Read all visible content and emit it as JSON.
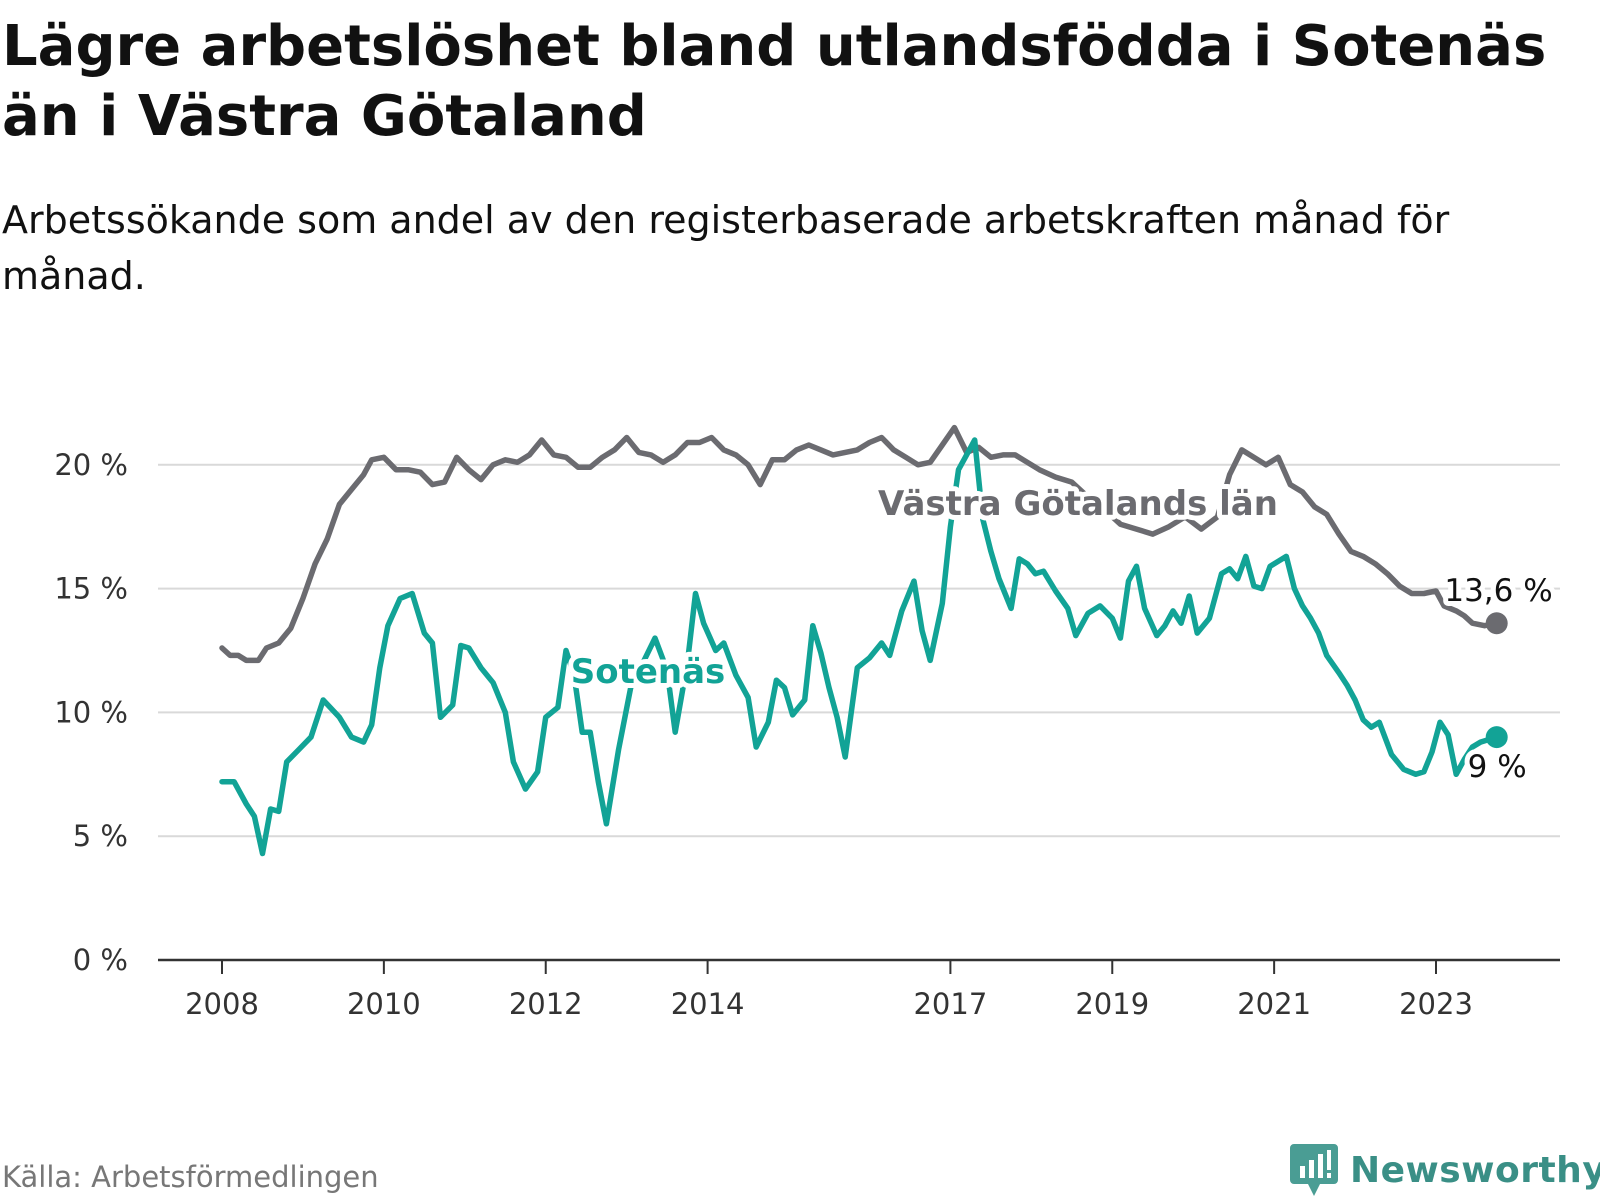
{
  "title": "Lägre arbetslöshet bland utlandsfödda i Sotenäs än i Västra Götaland",
  "subtitle": "Arbetssökande som andel av den registerbaserade arbetskraften månad för månad.",
  "source": "Källa: Arbetsförmedlingen",
  "brand": "Newsworthy",
  "icons": {
    "brand": "newsworthy-logo-icon"
  },
  "chart_data": {
    "type": "line",
    "title": "Lägre arbetslöshet bland utlandsfödda i Sotenäs än i Västra Götaland",
    "xlabel": "",
    "ylabel": "",
    "ylim": [
      0,
      21
    ],
    "xlim": [
      2007.5,
      2024.8
    ],
    "grid": true,
    "y_ticks": [
      {
        "value": 0,
        "label": "0 %"
      },
      {
        "value": 5,
        "label": "5 %"
      },
      {
        "value": 10,
        "label": "10 %"
      },
      {
        "value": 15,
        "label": "15 %"
      },
      {
        "value": 20,
        "label": "20 %"
      }
    ],
    "x_ticks": [
      {
        "value": 2008,
        "label": "2008"
      },
      {
        "value": 2010,
        "label": "2010"
      },
      {
        "value": 2012,
        "label": "2012"
      },
      {
        "value": 2014,
        "label": "2014"
      },
      {
        "value": 2017,
        "label": "2017"
      },
      {
        "value": 2019,
        "label": "2019"
      },
      {
        "value": 2021,
        "label": "2021"
      },
      {
        "value": 2023,
        "label": "2023"
      }
    ],
    "series": [
      {
        "name": "Västra Götalands län",
        "color": "#6b6b70",
        "end_label": "13,6 %",
        "points": [
          [
            2008.0,
            12.6
          ],
          [
            2008.1,
            12.3
          ],
          [
            2008.2,
            12.3
          ],
          [
            2008.3,
            12.1
          ],
          [
            2008.45,
            12.1
          ],
          [
            2008.55,
            12.6
          ],
          [
            2008.7,
            12.8
          ],
          [
            2008.85,
            13.4
          ],
          [
            2009.0,
            14.6
          ],
          [
            2009.15,
            16.0
          ],
          [
            2009.3,
            17.0
          ],
          [
            2009.45,
            18.4
          ],
          [
            2009.6,
            19.0
          ],
          [
            2009.75,
            19.6
          ],
          [
            2009.85,
            20.2
          ],
          [
            2010.0,
            20.3
          ],
          [
            2010.15,
            19.8
          ],
          [
            2010.3,
            19.8
          ],
          [
            2010.45,
            19.7
          ],
          [
            2010.6,
            19.2
          ],
          [
            2010.75,
            19.3
          ],
          [
            2010.9,
            20.3
          ],
          [
            2011.05,
            19.8
          ],
          [
            2011.2,
            19.4
          ],
          [
            2011.35,
            20.0
          ],
          [
            2011.5,
            20.2
          ],
          [
            2011.65,
            20.1
          ],
          [
            2011.8,
            20.4
          ],
          [
            2011.95,
            21.0
          ],
          [
            2012.1,
            20.4
          ],
          [
            2012.25,
            20.3
          ],
          [
            2012.4,
            19.9
          ],
          [
            2012.55,
            19.9
          ],
          [
            2012.7,
            20.3
          ],
          [
            2012.85,
            20.6
          ],
          [
            2013.0,
            21.1
          ],
          [
            2013.15,
            20.5
          ],
          [
            2013.3,
            20.4
          ],
          [
            2013.45,
            20.1
          ],
          [
            2013.6,
            20.4
          ],
          [
            2013.75,
            20.9
          ],
          [
            2013.9,
            20.9
          ],
          [
            2014.05,
            21.1
          ],
          [
            2014.2,
            20.6
          ],
          [
            2014.35,
            20.4
          ],
          [
            2014.5,
            20.0
          ],
          [
            2014.65,
            19.2
          ],
          [
            2014.8,
            20.2
          ],
          [
            2014.95,
            20.2
          ],
          [
            2015.1,
            20.6
          ],
          [
            2015.25,
            20.8
          ],
          [
            2015.4,
            20.6
          ],
          [
            2015.55,
            20.4
          ],
          [
            2015.7,
            20.5
          ],
          [
            2015.85,
            20.6
          ],
          [
            2016.0,
            20.9
          ],
          [
            2016.15,
            21.1
          ],
          [
            2016.3,
            20.6
          ],
          [
            2016.45,
            20.3
          ],
          [
            2016.6,
            20.0
          ],
          [
            2016.75,
            20.1
          ],
          [
            2016.9,
            20.8
          ],
          [
            2017.05,
            21.5
          ],
          [
            2017.2,
            20.5
          ],
          [
            2017.35,
            20.7
          ],
          [
            2017.5,
            20.3
          ],
          [
            2017.65,
            20.4
          ],
          [
            2017.8,
            20.4
          ],
          [
            2017.9,
            20.2
          ],
          [
            2018.1,
            19.8
          ],
          [
            2018.3,
            19.5
          ],
          [
            2018.5,
            19.3
          ],
          [
            2018.7,
            18.7
          ],
          [
            2018.9,
            18.2
          ],
          [
            2019.1,
            17.6
          ],
          [
            2019.3,
            17.4
          ],
          [
            2019.5,
            17.2
          ],
          [
            2019.7,
            17.5
          ],
          [
            2019.9,
            17.9
          ],
          [
            2020.1,
            17.4
          ],
          [
            2020.3,
            17.9
          ],
          [
            2020.45,
            19.6
          ],
          [
            2020.6,
            20.6
          ],
          [
            2020.75,
            20.3
          ],
          [
            2020.9,
            20.0
          ],
          [
            2021.05,
            20.3
          ],
          [
            2021.2,
            19.2
          ],
          [
            2021.35,
            18.9
          ],
          [
            2021.5,
            18.3
          ],
          [
            2021.65,
            18.0
          ],
          [
            2021.8,
            17.2
          ],
          [
            2021.95,
            16.5
          ],
          [
            2022.1,
            16.3
          ],
          [
            2022.25,
            16.0
          ],
          [
            2022.4,
            15.6
          ],
          [
            2022.55,
            15.1
          ],
          [
            2022.7,
            14.8
          ],
          [
            2022.85,
            14.8
          ],
          [
            2023.0,
            14.9
          ],
          [
            2023.1,
            14.3
          ],
          [
            2023.25,
            14.1
          ],
          [
            2023.35,
            13.9
          ],
          [
            2023.45,
            13.6
          ],
          [
            2023.6,
            13.5
          ],
          [
            2023.75,
            13.6
          ]
        ]
      },
      {
        "name": "Sotenäs",
        "color": "#12a396",
        "end_label": "9 %",
        "points": [
          [
            2008.0,
            7.2
          ],
          [
            2008.15,
            7.2
          ],
          [
            2008.3,
            6.3
          ],
          [
            2008.4,
            5.8
          ],
          [
            2008.5,
            4.3
          ],
          [
            2008.6,
            6.1
          ],
          [
            2008.7,
            6.0
          ],
          [
            2008.8,
            8.0
          ],
          [
            2008.95,
            8.5
          ],
          [
            2009.1,
            9.0
          ],
          [
            2009.25,
            10.5
          ],
          [
            2009.45,
            9.8
          ],
          [
            2009.6,
            9.0
          ],
          [
            2009.75,
            8.8
          ],
          [
            2009.85,
            9.5
          ],
          [
            2009.95,
            11.8
          ],
          [
            2010.05,
            13.5
          ],
          [
            2010.2,
            14.6
          ],
          [
            2010.35,
            14.8
          ],
          [
            2010.5,
            13.2
          ],
          [
            2010.6,
            12.8
          ],
          [
            2010.7,
            9.8
          ],
          [
            2010.85,
            10.3
          ],
          [
            2010.95,
            12.7
          ],
          [
            2011.05,
            12.6
          ],
          [
            2011.2,
            11.8
          ],
          [
            2011.35,
            11.2
          ],
          [
            2011.5,
            10.0
          ],
          [
            2011.6,
            8.0
          ],
          [
            2011.75,
            6.9
          ],
          [
            2011.9,
            7.6
          ],
          [
            2012.0,
            9.8
          ],
          [
            2012.15,
            10.2
          ],
          [
            2012.25,
            12.5
          ],
          [
            2012.35,
            11.5
          ],
          [
            2012.45,
            9.2
          ],
          [
            2012.55,
            9.2
          ],
          [
            2012.65,
            7.2
          ],
          [
            2012.75,
            5.5
          ],
          [
            2012.9,
            8.5
          ],
          [
            2013.05,
            11.0
          ],
          [
            2013.2,
            12.0
          ],
          [
            2013.35,
            13.0
          ],
          [
            2013.5,
            11.7
          ],
          [
            2013.6,
            9.2
          ],
          [
            2013.75,
            12.0
          ],
          [
            2013.85,
            14.8
          ],
          [
            2013.95,
            13.6
          ],
          [
            2014.1,
            12.5
          ],
          [
            2014.2,
            12.8
          ],
          [
            2014.35,
            11.5
          ],
          [
            2014.5,
            10.6
          ],
          [
            2014.6,
            8.6
          ],
          [
            2014.75,
            9.6
          ],
          [
            2014.85,
            11.3
          ],
          [
            2014.95,
            11.0
          ],
          [
            2015.05,
            9.9
          ],
          [
            2015.2,
            10.5
          ],
          [
            2015.3,
            13.5
          ],
          [
            2015.4,
            12.4
          ],
          [
            2015.5,
            11.0
          ],
          [
            2015.6,
            9.8
          ],
          [
            2015.7,
            8.2
          ],
          [
            2015.85,
            11.8
          ],
          [
            2016.0,
            12.2
          ],
          [
            2016.15,
            12.8
          ],
          [
            2016.25,
            12.3
          ],
          [
            2016.4,
            14.1
          ],
          [
            2016.55,
            15.3
          ],
          [
            2016.65,
            13.3
          ],
          [
            2016.75,
            12.1
          ],
          [
            2016.9,
            14.4
          ],
          [
            2017.0,
            17.5
          ],
          [
            2017.1,
            19.8
          ],
          [
            2017.2,
            20.4
          ],
          [
            2017.3,
            21.0
          ],
          [
            2017.4,
            17.8
          ],
          [
            2017.5,
            16.5
          ],
          [
            2017.6,
            15.4
          ],
          [
            2017.75,
            14.2
          ],
          [
            2017.85,
            16.2
          ],
          [
            2017.95,
            16.0
          ],
          [
            2018.05,
            15.6
          ],
          [
            2018.15,
            15.7
          ],
          [
            2018.3,
            14.9
          ],
          [
            2018.45,
            14.2
          ],
          [
            2018.55,
            13.1
          ],
          [
            2018.7,
            14.0
          ],
          [
            2018.85,
            14.3
          ],
          [
            2019.0,
            13.8
          ],
          [
            2019.1,
            13.0
          ],
          [
            2019.2,
            15.3
          ],
          [
            2019.3,
            15.9
          ],
          [
            2019.4,
            14.2
          ],
          [
            2019.55,
            13.1
          ],
          [
            2019.65,
            13.5
          ],
          [
            2019.75,
            14.1
          ],
          [
            2019.85,
            13.6
          ],
          [
            2019.95,
            14.7
          ],
          [
            2020.05,
            13.2
          ],
          [
            2020.2,
            13.8
          ],
          [
            2020.35,
            15.6
          ],
          [
            2020.45,
            15.8
          ],
          [
            2020.55,
            15.4
          ],
          [
            2020.65,
            16.3
          ],
          [
            2020.75,
            15.1
          ],
          [
            2020.85,
            15.0
          ],
          [
            2020.95,
            15.9
          ],
          [
            2021.05,
            16.1
          ],
          [
            2021.15,
            16.3
          ],
          [
            2021.25,
            15.0
          ],
          [
            2021.35,
            14.3
          ],
          [
            2021.45,
            13.8
          ],
          [
            2021.55,
            13.2
          ],
          [
            2021.65,
            12.3
          ],
          [
            2021.8,
            11.6
          ],
          [
            2021.9,
            11.1
          ],
          [
            2022.0,
            10.5
          ],
          [
            2022.1,
            9.7
          ],
          [
            2022.2,
            9.4
          ],
          [
            2022.3,
            9.6
          ],
          [
            2022.45,
            8.3
          ],
          [
            2022.6,
            7.7
          ],
          [
            2022.75,
            7.5
          ],
          [
            2022.85,
            7.6
          ],
          [
            2022.95,
            8.4
          ],
          [
            2023.05,
            9.6
          ],
          [
            2023.15,
            9.1
          ],
          [
            2023.25,
            7.5
          ],
          [
            2023.35,
            8.1
          ],
          [
            2023.45,
            8.6
          ],
          [
            2023.55,
            8.8
          ],
          [
            2023.65,
            8.9
          ],
          [
            2023.75,
            9.0
          ]
        ]
      }
    ]
  }
}
